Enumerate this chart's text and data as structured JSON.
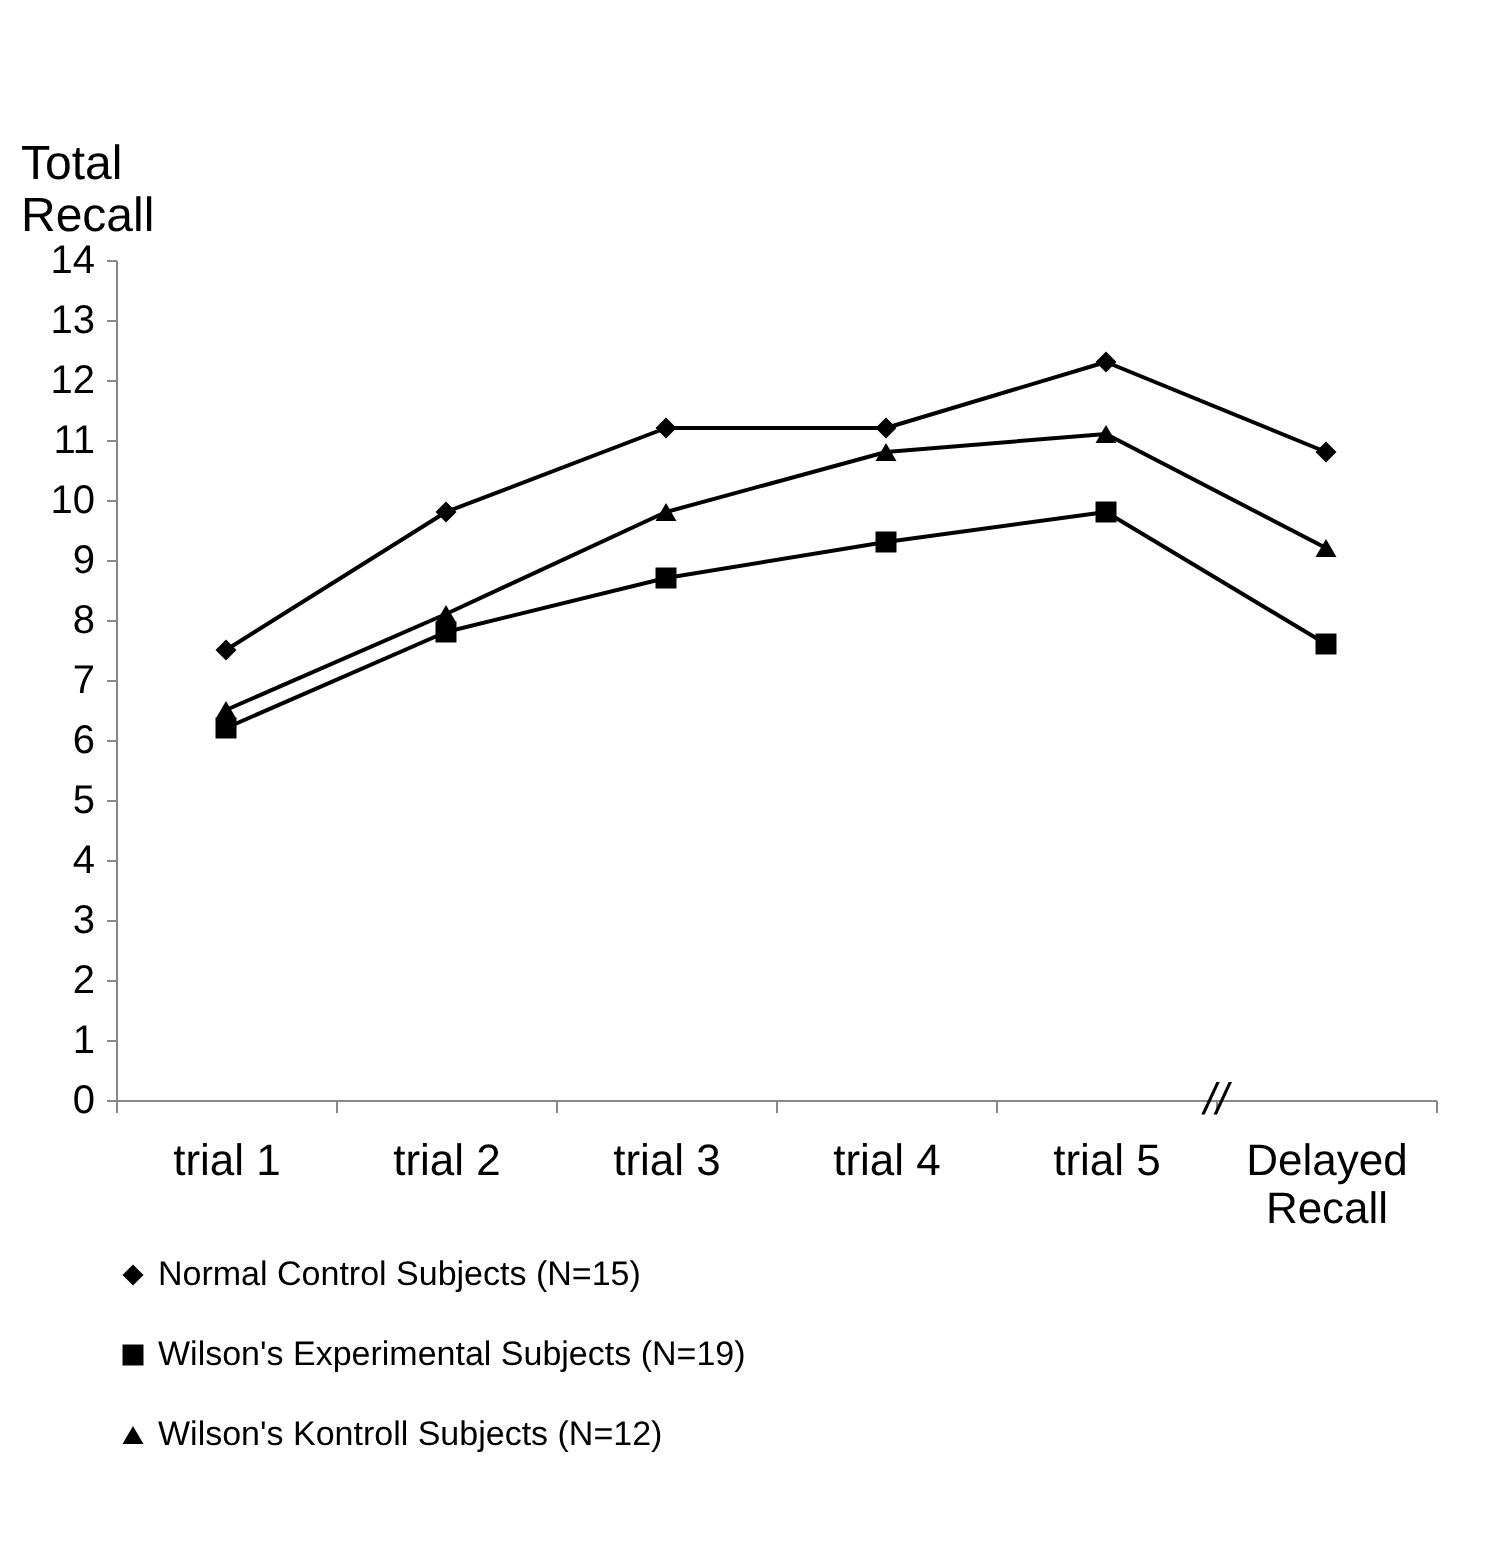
{
  "chart_data": {
    "type": "line",
    "ylabel": "Total Recall",
    "categories": [
      "trial 1",
      "trial 2",
      "trial 3",
      "trial 4",
      "trial 5",
      "Delayed Recall"
    ],
    "series": [
      {
        "name": "Normal Control Subjects  (N=15)",
        "color": "#000000",
        "marker": "diamond",
        "values": [
          7.5,
          9.8,
          11.2,
          11.2,
          12.3,
          10.8
        ]
      },
      {
        "name": "Wilson's Experimental Subjects (N=19)",
        "color": "#000000",
        "marker": "square",
        "values": [
          6.2,
          7.8,
          8.7,
          9.3,
          9.8,
          7.6
        ]
      },
      {
        "name": "Wilson's Kontroll Subjects (N=12)",
        "color": "#000000",
        "marker": "triangle",
        "values": [
          6.5,
          8.1,
          9.8,
          10.8,
          11.1,
          9.2
        ]
      }
    ],
    "ylim": [
      0,
      14
    ],
    "yticks": [
      0,
      1,
      2,
      3,
      4,
      5,
      6,
      7,
      8,
      9,
      10,
      11,
      12,
      13,
      14
    ],
    "grid": false,
    "legend": "bottom",
    "line_style": "solid",
    "annotations": [
      "//"
    ]
  }
}
